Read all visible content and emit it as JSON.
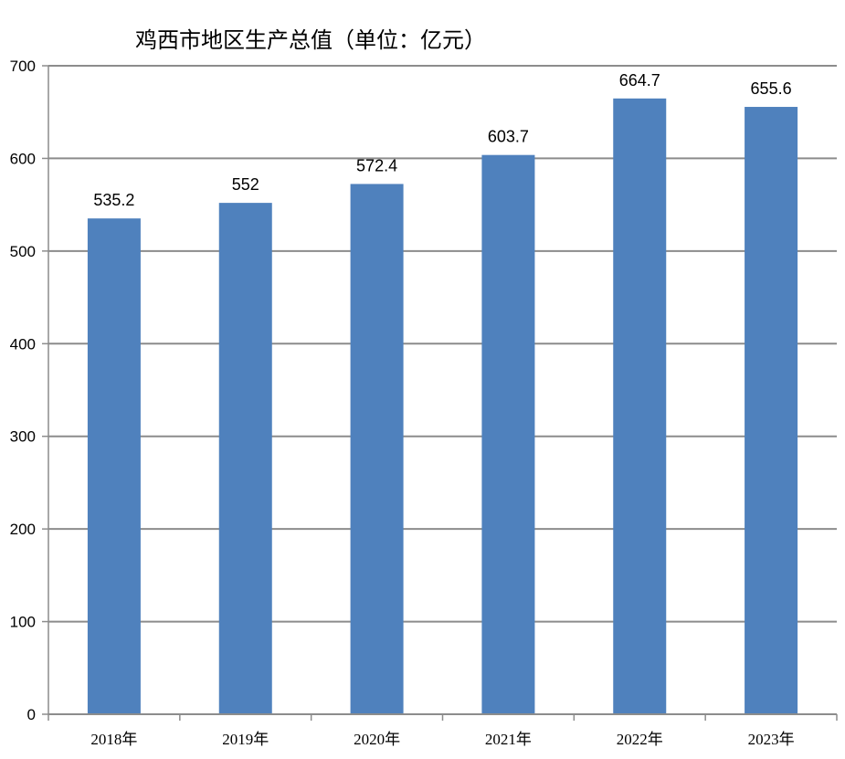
{
  "chart_data": {
    "type": "bar",
    "title": "鸡西市地区生产总值（单位：亿元）",
    "categories": [
      "2018年",
      "2019年",
      "2020年",
      "2021年",
      "2022年",
      "2023年"
    ],
    "values": [
      535.2,
      552,
      572.4,
      603.7,
      664.7,
      655.6
    ],
    "data_labels": [
      "535.2",
      "552",
      "572.4",
      "603.7",
      "664.7",
      "655.6"
    ],
    "ylim": [
      0,
      700
    ],
    "yticks": [
      0,
      100,
      200,
      300,
      400,
      500,
      600,
      700
    ],
    "grid": true,
    "legend": "none",
    "colors": {
      "bar": "#4F81BD",
      "grid": "#8C8C8C",
      "axis": "#8C8C8C"
    }
  }
}
